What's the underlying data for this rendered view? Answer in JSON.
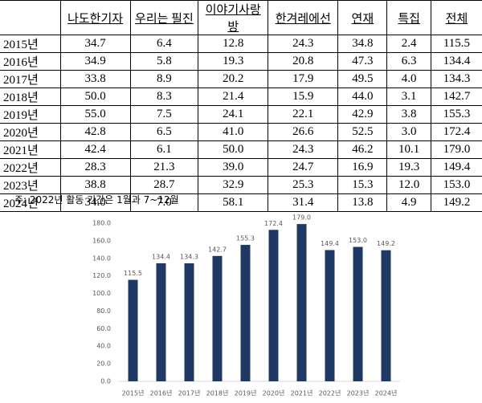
{
  "table": {
    "header": [
      "",
      "나도한기자",
      "우리는 필진",
      "이야기사랑방",
      "한겨레에선",
      "연재",
      "특집",
      "전체"
    ],
    "rows": [
      [
        "2015년",
        "34.7",
        "6.4",
        "12.8",
        "24.3",
        "34.8",
        "2.4",
        "115.5"
      ],
      [
        "2016년",
        "34.9",
        "5.8",
        "19.3",
        "20.8",
        "47.3",
        "6.3",
        "134.4"
      ],
      [
        "2017년",
        "33.8",
        "8.9",
        "20.2",
        "17.9",
        "49.5",
        "4.0",
        "134.3"
      ],
      [
        "2018년",
        "50.0",
        "8.3",
        "21.4",
        "15.9",
        "44.0",
        "3.1",
        "142.7"
      ],
      [
        "2019년",
        "55.0",
        "7.5",
        "24.1",
        "22.1",
        "42.9",
        "3.8",
        "155.3"
      ],
      [
        "2020년",
        "42.8",
        "6.5",
        "41.0",
        "26.6",
        "52.5",
        "3.0",
        "172.4"
      ],
      [
        "2021년",
        "42.4",
        "6.1",
        "50.0",
        "24.3",
        "46.2",
        "10.1",
        "179.0"
      ],
      [
        "2022년",
        "28.3",
        "21.3",
        "39.0",
        "24.7",
        "16.9",
        "19.3",
        "149.4"
      ],
      [
        "2023년",
        "38.8",
        "28.7",
        "32.9",
        "25.3",
        "15.3",
        "12.0",
        "153.0"
      ],
      [
        "2024년",
        "34.0",
        "7.0",
        "58.1",
        "31.4",
        "13.8",
        "4.9",
        "149.2"
      ]
    ]
  },
  "note": "주: 2022년 활동 기간은 1월과 7~12월",
  "chart_data": {
    "type": "bar",
    "categories": [
      "2015년",
      "2016년",
      "2017년",
      "2018년",
      "2019년",
      "2020년",
      "2021년",
      "2022년",
      "2023년",
      "2024년"
    ],
    "values": [
      115.5,
      134.4,
      134.3,
      142.7,
      155.3,
      172.4,
      179.0,
      149.4,
      153.0,
      149.2
    ],
    "value_labels": [
      "115.5",
      "134.4",
      "134.3",
      "142.7",
      "155.3",
      "172.4",
      "179.0",
      "149.4",
      "153.0",
      "149.2"
    ],
    "color": "#203864",
    "ylim": [
      0,
      180
    ],
    "yticks": [
      {
        "value": 0,
        "label": "0.0"
      },
      {
        "value": 20,
        "label": "20.0"
      },
      {
        "value": 40,
        "label": "40.0"
      },
      {
        "value": 60,
        "label": "60.0"
      },
      {
        "value": 80,
        "label": "80.0"
      },
      {
        "value": 100,
        "label": "100.0"
      },
      {
        "value": 120,
        "label": "120.0"
      },
      {
        "value": 140,
        "label": "140.0"
      },
      {
        "value": 160,
        "label": "160.0"
      },
      {
        "value": 180,
        "label": "180.0"
      }
    ],
    "grid": false
  }
}
